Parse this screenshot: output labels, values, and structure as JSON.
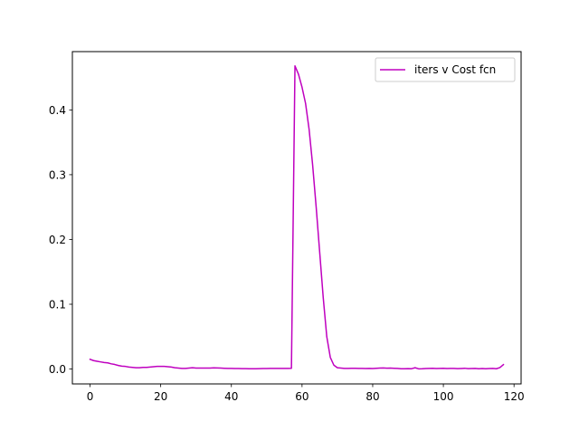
{
  "chart_data": {
    "type": "line",
    "xlim": [
      -5,
      122
    ],
    "ylim": [
      -0.023,
      0.49
    ],
    "x_ticks": [
      0,
      20,
      40,
      60,
      80,
      100,
      120
    ],
    "y_ticks": [
      0.0,
      0.1,
      0.2,
      0.3,
      0.4
    ],
    "x_tick_labels": [
      "0",
      "20",
      "40",
      "60",
      "80",
      "100",
      "120"
    ],
    "y_tick_labels": [
      "0.0",
      "0.1",
      "0.2",
      "0.3",
      "0.4"
    ],
    "grid": false,
    "legend_position": "top-right",
    "series": [
      {
        "name": "iters v Cost fcn",
        "color": "#bf00bf",
        "x": [
          0,
          1,
          2,
          3,
          4,
          5,
          6,
          7,
          8,
          9,
          10,
          11,
          12,
          13,
          14,
          15,
          16,
          17,
          18,
          19,
          20,
          21,
          22,
          23,
          24,
          25,
          26,
          27,
          28,
          29,
          30,
          31,
          32,
          33,
          34,
          35,
          36,
          37,
          38,
          39,
          40,
          41,
          42,
          43,
          44,
          45,
          46,
          47,
          48,
          49,
          50,
          51,
          52,
          53,
          54,
          55,
          56,
          57,
          58,
          59,
          60,
          61,
          62,
          63,
          64,
          65,
          66,
          67,
          68,
          69,
          70,
          71,
          72,
          73,
          74,
          75,
          76,
          77,
          78,
          79,
          80,
          81,
          82,
          83,
          84,
          85,
          86,
          87,
          88,
          89,
          90,
          91,
          92,
          93,
          94,
          95,
          96,
          97,
          98,
          99,
          100,
          101,
          102,
          103,
          104,
          105,
          106,
          107,
          108,
          109,
          110,
          111,
          112,
          113,
          114,
          115,
          116,
          117
        ],
        "y": [
          0.015,
          0.013,
          0.012,
          0.011,
          0.01,
          0.0095,
          0.008,
          0.007,
          0.0055,
          0.0045,
          0.004,
          0.003,
          0.0025,
          0.002,
          0.002,
          0.0025,
          0.0025,
          0.003,
          0.0035,
          0.004,
          0.004,
          0.004,
          0.0035,
          0.003,
          0.002,
          0.0015,
          0.001,
          0.001,
          0.0015,
          0.002,
          0.0015,
          0.0015,
          0.0015,
          0.0015,
          0.0015,
          0.0018,
          0.0016,
          0.0014,
          0.0012,
          0.001,
          0.0009,
          0.0008,
          0.0007,
          0.0006,
          0.0006,
          0.0005,
          0.0005,
          0.0004,
          0.0006,
          0.0007,
          0.0008,
          0.0009,
          0.001,
          0.001,
          0.001,
          0.001,
          0.001,
          0.0012,
          0.468,
          0.455,
          0.435,
          0.41,
          0.37,
          0.315,
          0.25,
          0.18,
          0.11,
          0.05,
          0.018,
          0.006,
          0.002,
          0.0015,
          0.001,
          0.001,
          0.0012,
          0.0011,
          0.001,
          0.0009,
          0.0008,
          0.001,
          0.0008,
          0.0011,
          0.0015,
          0.0016,
          0.0013,
          0.0014,
          0.0011,
          0.0009,
          0.0005,
          0.0004,
          0.0006,
          0.0005,
          0.002,
          0.0003,
          0.0004,
          0.0008,
          0.001,
          0.0011,
          0.0007,
          0.0009,
          0.0012,
          0.0008,
          0.0009,
          0.0009,
          0.0006,
          0.0008,
          0.0012,
          0.0006,
          0.0007,
          0.0009,
          0.0004,
          0.0008,
          0.0005,
          0.0008,
          0.0009,
          0.0004,
          0.0022,
          0.0068
        ]
      }
    ]
  }
}
